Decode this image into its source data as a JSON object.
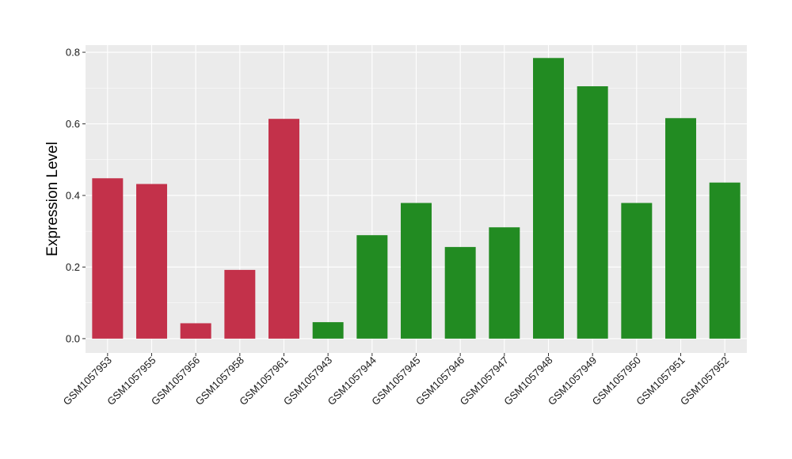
{
  "chart_data": {
    "type": "bar",
    "title": "",
    "xlabel": "",
    "ylabel": "Expression Level",
    "ylim": [
      -0.04,
      0.82
    ],
    "yticks": [
      "0.0",
      "0.2",
      "0.4",
      "0.6",
      "0.8"
    ],
    "grid": true,
    "categories": [
      "GSM1057953",
      "GSM1057955",
      "GSM1057956",
      "GSM1057958",
      "GSM1057961",
      "GSM1057943",
      "GSM1057944",
      "GSM1057945",
      "GSM1057946",
      "GSM1057947",
      "GSM1057948",
      "GSM1057949",
      "GSM1057950",
      "GSM1057951",
      "GSM1057952"
    ],
    "values": [
      0.448,
      0.432,
      0.043,
      0.192,
      0.614,
      0.046,
      0.289,
      0.379,
      0.256,
      0.311,
      0.784,
      0.705,
      0.379,
      0.616,
      0.436
    ],
    "bar_colors": [
      "#c3314a",
      "#c3314a",
      "#c3314a",
      "#c3314a",
      "#c3314a",
      "#228b22",
      "#228b22",
      "#228b22",
      "#228b22",
      "#228b22",
      "#228b22",
      "#228b22",
      "#228b22",
      "#228b22",
      "#228b22"
    ],
    "panel_background": "#ebebeb",
    "grid_color": "#ffffff"
  }
}
